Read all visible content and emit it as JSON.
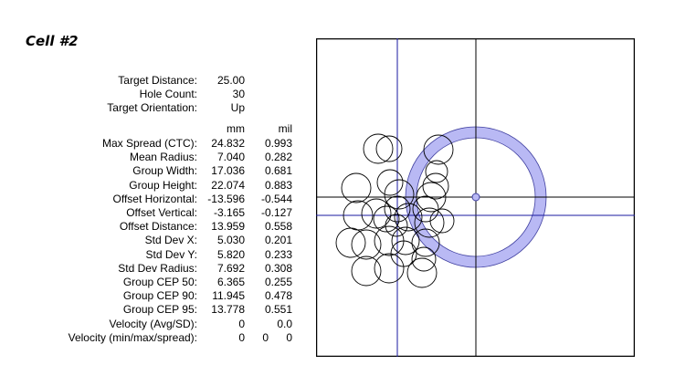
{
  "title": "Cell #2",
  "summary": [
    {
      "label": "Target Distance:",
      "value": "25.00"
    },
    {
      "label": "Hole Count:",
      "value": "30"
    },
    {
      "label": "Target Orientation:",
      "value": "Up"
    }
  ],
  "units": {
    "mm": "mm",
    "mil": "mil"
  },
  "metrics": [
    {
      "label": "Max Spread (CTC):",
      "mm": "24.832",
      "mil": "0.993"
    },
    {
      "label": "Mean Radius:",
      "mm": "7.040",
      "mil": "0.282"
    },
    {
      "label": "Group Width:",
      "mm": "17.036",
      "mil": "0.681"
    },
    {
      "label": "Group Height:",
      "mm": "22.074",
      "mil": "0.883"
    },
    {
      "label": "Offset Horizontal:",
      "mm": "-13.596",
      "mil": "-0.544"
    },
    {
      "label": "Offset Vertical:",
      "mm": "-3.165",
      "mil": "-0.127"
    },
    {
      "label": "Offset Distance:",
      "mm": "13.959",
      "mil": "0.558"
    },
    {
      "label": "Std Dev X:",
      "mm": "5.030",
      "mil": "0.201"
    },
    {
      "label": "Std Dev Y:",
      "mm": "5.820",
      "mil": "0.233"
    },
    {
      "label": "Std Dev Radius:",
      "mm": "7.692",
      "mil": "0.308"
    },
    {
      "label": "Group CEP 50:",
      "mm": "6.365",
      "mil": "0.255"
    },
    {
      "label": "Group CEP 90:",
      "mm": "11.945",
      "mil": "0.478"
    },
    {
      "label": "Group CEP 95:",
      "mm": "13.778",
      "mil": "0.551"
    },
    {
      "label": "Velocity (Avg/SD):",
      "mm": "0",
      "mil": "0.0"
    }
  ],
  "velocity_minmax": {
    "label": "Velocity (min/max/spread):",
    "min": "0",
    "max": "0",
    "spread": "0"
  },
  "colors": {
    "ring": "#b9b9f4",
    "ring_stroke": "#4040a0",
    "group_axis": "#1a1aa0",
    "target_axis": "#000000"
  }
}
